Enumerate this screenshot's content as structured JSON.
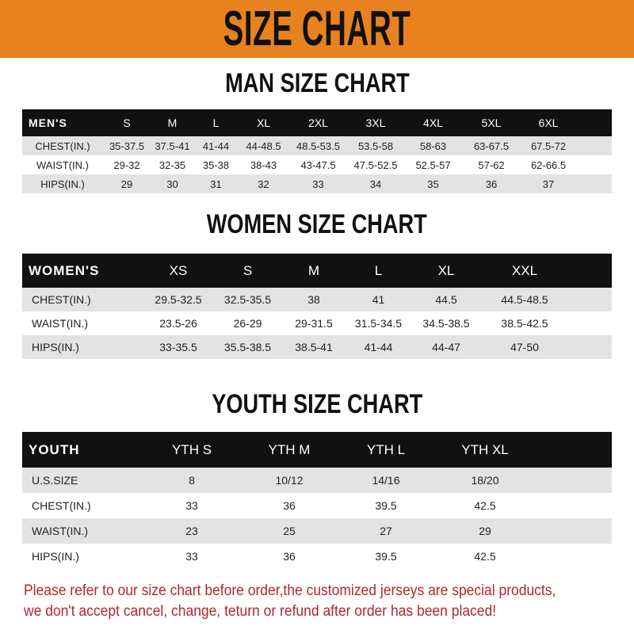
{
  "banner": {
    "title": "SIZE CHART",
    "color": "#e8821e"
  },
  "men": {
    "heading": "MAN SIZE CHART",
    "corner": "MEN'S",
    "sizes": [
      "S",
      "M",
      "L",
      "XL",
      "2XL",
      "3XL",
      "4XL",
      "5XL",
      "6XL"
    ],
    "rows": [
      {
        "label": "CHEST(IN.)",
        "values": [
          "35-37.5",
          "37.5-41",
          "41-44",
          "44-48.5",
          "48.5-53.5",
          "53.5-58",
          "58-63",
          "63-67.5",
          "67.5-72"
        ]
      },
      {
        "label": "WAIST(IN.)",
        "values": [
          "29-32",
          "32-35",
          "35-38",
          "38-43",
          "43-47.5",
          "47.5-52.5",
          "52.5-57",
          "57-62",
          "62-66.5"
        ]
      },
      {
        "label": "HIPS(IN.)",
        "values": [
          "29",
          "30",
          "31",
          "32",
          "33",
          "34",
          "35",
          "36",
          "37"
        ]
      }
    ]
  },
  "women": {
    "heading": "WOMEN SIZE CHART",
    "corner": "WOMEN'S",
    "sizes": [
      "XS",
      "S",
      "M",
      "L",
      "XL",
      "XXL"
    ],
    "rows": [
      {
        "label": "CHEST(IN.)",
        "values": [
          "29.5-32.5",
          "32.5-35.5",
          "38",
          "41",
          "44.5",
          "44.5-48.5"
        ]
      },
      {
        "label": "WAIST(IN.)",
        "values": [
          "23.5-26",
          "26-29",
          "29-31.5",
          "31.5-34.5",
          "34.5-38.5",
          "38.5-42.5"
        ]
      },
      {
        "label": "HIPS(IN.)",
        "values": [
          "33-35.5",
          "35.5-38.5",
          "38.5-41",
          "41-44",
          "44-47",
          "47-50"
        ]
      }
    ]
  },
  "youth": {
    "heading": "YOUTH SIZE CHART",
    "corner": "YOUTH",
    "sizes": [
      "YTH S",
      "YTH M",
      "YTH L",
      "YTH XL"
    ],
    "rows": [
      {
        "label": "U.S.SIZE",
        "values": [
          "8",
          "10/12",
          "14/16",
          "18/20"
        ]
      },
      {
        "label": "CHEST(IN.)",
        "values": [
          "33",
          "36",
          "39.5",
          "42.5"
        ]
      },
      {
        "label": "WAIST(IN.)",
        "values": [
          "23",
          "25",
          "27",
          "29"
        ]
      },
      {
        "label": "HIPS(IN.)",
        "values": [
          "33",
          "36",
          "39.5",
          "42.5"
        ]
      }
    ]
  },
  "notice": {
    "line1": "Please refer to our size chart before order,the customized jerseys are special products,",
    "line2": "we don't accept cancel, change, teturn or refund after order has been placed!",
    "color": "#b3262c"
  }
}
